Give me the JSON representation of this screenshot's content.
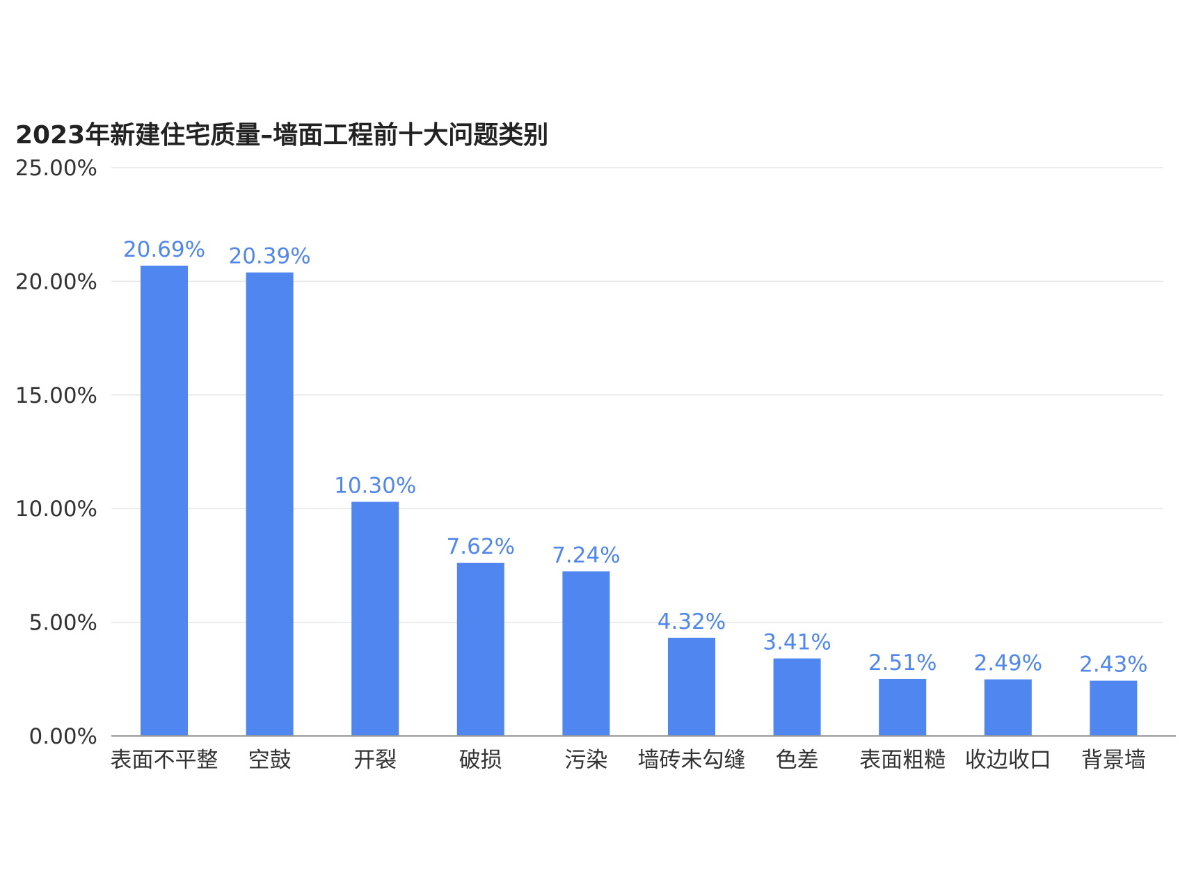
{
  "chart_data": {
    "type": "bar",
    "title": "2023年新建住宅质量–墙面工程前十大问题类别",
    "xlabel": "",
    "ylabel": "",
    "categories": [
      "表面不平整",
      "空鼓",
      "开裂",
      "破损",
      "污染",
      "墙砖未勾缝",
      "色差",
      "表面粗糙",
      "收边收口",
      "背景墙"
    ],
    "values": [
      20.69,
      20.39,
      10.3,
      7.62,
      7.24,
      4.32,
      3.41,
      2.51,
      2.49,
      2.43
    ],
    "data_labels": [
      "20.69%",
      "20.39%",
      "10.30%",
      "7.62%",
      "7.24%",
      "4.32%",
      "3.41%",
      "2.51%",
      "2.49%",
      "2.43%"
    ],
    "ylim": [
      0,
      25
    ],
    "yticks": [
      0,
      5,
      10,
      15,
      20,
      25
    ],
    "ytick_labels": [
      "0.00%",
      "5.00%",
      "10.00%",
      "15.00%",
      "20.00%",
      "25.00%"
    ],
    "grid": true,
    "legend": "none",
    "bar_color": "#4f86f0",
    "label_color": "#4f86f0"
  }
}
